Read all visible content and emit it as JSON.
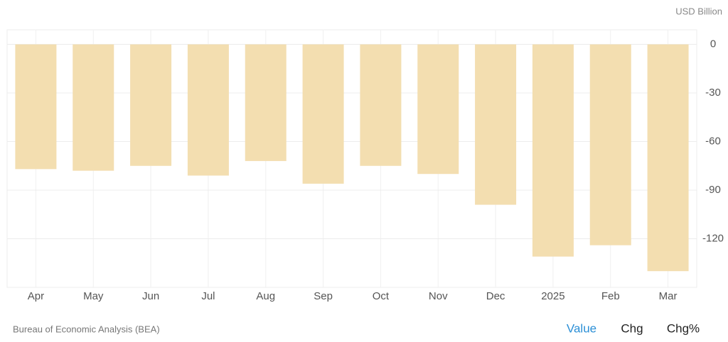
{
  "chart_data": {
    "type": "bar",
    "unit": "USD Billion",
    "source": "Bureau of Economic Analysis (BEA)",
    "buttons": [
      "Value",
      "Chg",
      "Chg%"
    ],
    "categories": [
      "Apr",
      "May",
      "Jun",
      "Jul",
      "Aug",
      "Sep",
      "Oct",
      "Nov",
      "Dec",
      "2025",
      "Feb",
      "Mar"
    ],
    "values": [
      -77,
      -78,
      -75,
      -81,
      -72,
      -86,
      -75,
      -80,
      -99,
      -131,
      -124,
      -140
    ],
    "color": "#f3deb0",
    "ylim": [
      -150,
      9
    ],
    "yticks": [
      0,
      -30,
      -60,
      -90,
      -120
    ],
    "grid": true
  }
}
